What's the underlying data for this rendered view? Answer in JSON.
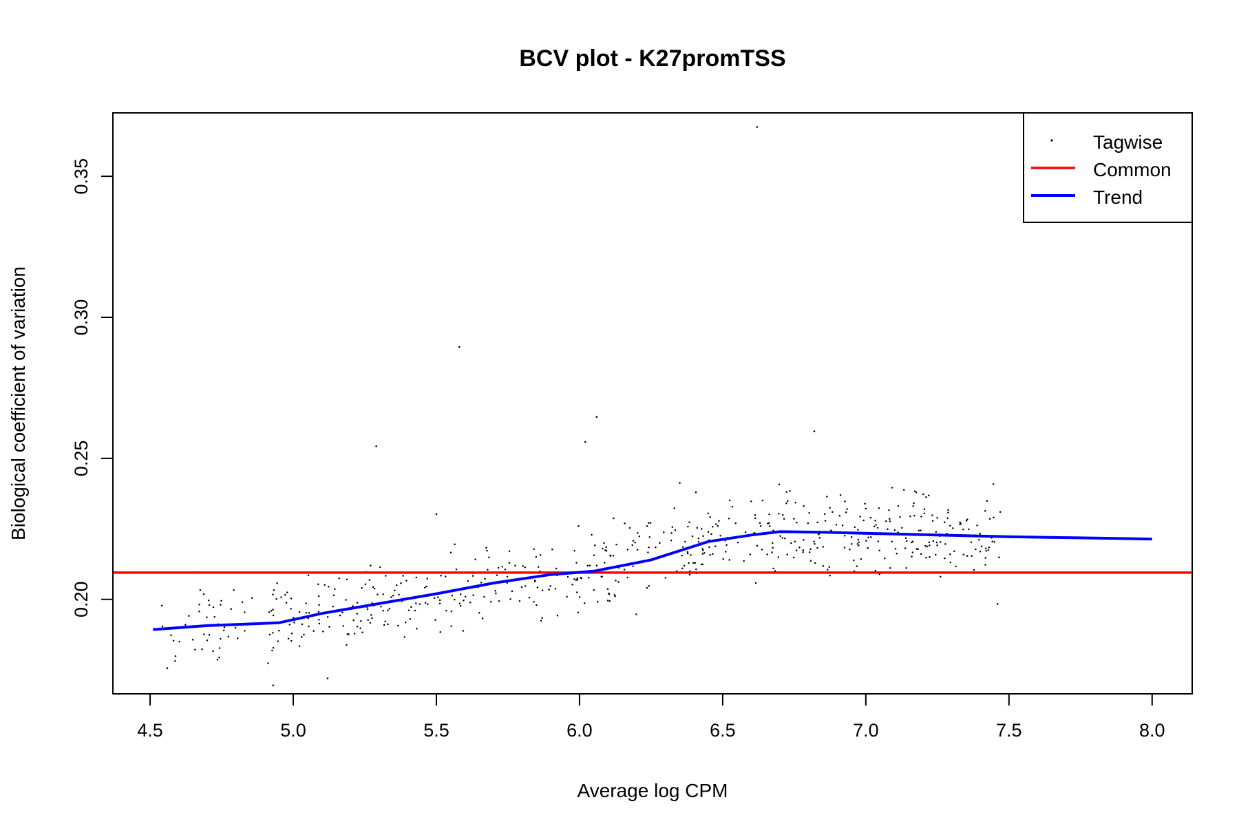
{
  "chart_data": {
    "type": "scatter",
    "title": "BCV plot - K27promTSS",
    "xlabel": "Average log CPM",
    "ylabel": "Biological coefficient of variation",
    "xlim": [
      4.37,
      8.14
    ],
    "ylim": [
      0.1665,
      0.3725
    ],
    "x_ticks": [
      "4.5",
      "5.0",
      "5.5",
      "6.0",
      "6.5",
      "7.0",
      "7.5",
      "8.0"
    ],
    "y_ticks": [
      "0.20",
      "0.25",
      "0.30",
      "0.35"
    ],
    "grid": false,
    "legend_position": "top-right",
    "legend": [
      {
        "label": "Tagwise",
        "kind": "point",
        "color": "#000000"
      },
      {
        "label": "Common",
        "kind": "line",
        "color": "#ff0000"
      },
      {
        "label": "Trend",
        "kind": "line",
        "color": "#0000ff"
      }
    ],
    "common_dispersion": 0.2095,
    "trend": {
      "x": [
        4.51,
        4.7,
        4.95,
        5.1,
        5.3,
        5.5,
        5.7,
        5.9,
        6.05,
        6.25,
        6.45,
        6.6,
        6.7,
        6.85,
        7.05,
        7.25,
        7.5,
        7.75,
        8.0
      ],
      "y": [
        0.1893,
        0.1907,
        0.1917,
        0.195,
        0.1985,
        0.202,
        0.2058,
        0.2088,
        0.21,
        0.214,
        0.2205,
        0.2228,
        0.224,
        0.2238,
        0.2233,
        0.2228,
        0.2222,
        0.2218,
        0.2214
      ]
    },
    "tagwise_outliers": {
      "x": [
        6.62,
        5.58,
        6.06,
        5.29,
        6.02,
        6.82,
        6.35,
        7.46,
        4.93,
        5.12,
        5.27,
        5.5,
        7.43,
        4.56
      ],
      "y": [
        0.3675,
        0.2895,
        0.2647,
        0.2543,
        0.2558,
        0.2596,
        0.2413,
        0.1984,
        0.1695,
        0.172,
        0.212,
        0.2302,
        0.2184,
        0.1756
      ]
    },
    "tagwise_cloud_points": 620,
    "colors": {
      "tagwise": "#000000",
      "common": "#ff0000",
      "trend": "#0000ff",
      "frame": "#000000"
    }
  }
}
